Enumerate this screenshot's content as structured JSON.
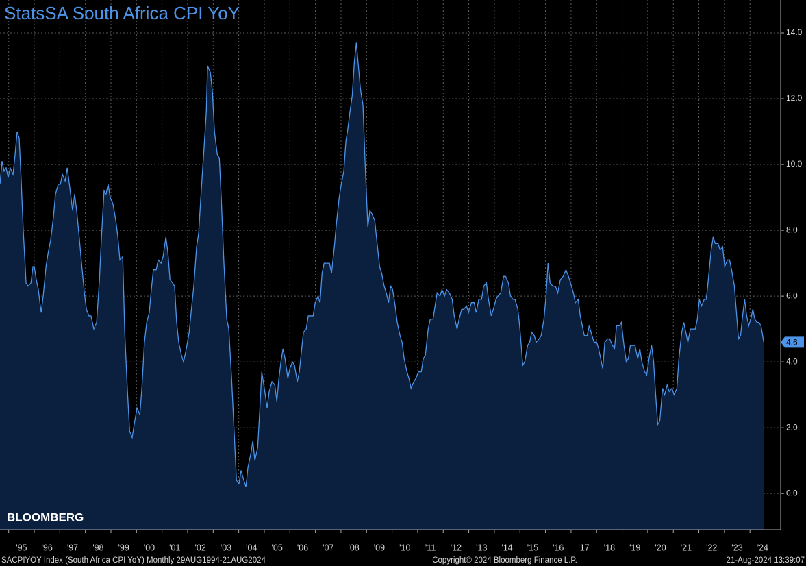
{
  "chart_data": {
    "type": "area",
    "title": "StatsSA South Africa CPI YoY",
    "watermark": "BLOOMBERG",
    "footer_left": "SACPIYOY Index (South Africa CPI YoY)  Monthly 29AUG1994-21AUG2024",
    "footer_center": "Copyright© 2024 Bloomberg Finance L.P.",
    "footer_right": "21-Aug-2024 13:39:07",
    "color": "#4d94e8",
    "fill": "#0b1f3e",
    "grid": true,
    "xlim": [
      1994.66,
      2025.2
    ],
    "ylim": [
      -1.1,
      15.0
    ],
    "yticks": [
      {
        "value": 0,
        "label": "0.0"
      },
      {
        "value": 2,
        "label": "2.0"
      },
      {
        "value": 4,
        "label": "4.0"
      },
      {
        "value": 6,
        "label": "6.0"
      },
      {
        "value": 8,
        "label": "8.0"
      },
      {
        "value": 10,
        "label": "10.0"
      },
      {
        "value": 12,
        "label": "12.0"
      },
      {
        "value": 14,
        "label": "14.0"
      }
    ],
    "xticks": [
      {
        "value": 1995,
        "label": "'95"
      },
      {
        "value": 1996,
        "label": "'96"
      },
      {
        "value": 1997,
        "label": "'97"
      },
      {
        "value": 1998,
        "label": "'98"
      },
      {
        "value": 1999,
        "label": "'99"
      },
      {
        "value": 2000,
        "label": "'00"
      },
      {
        "value": 2001,
        "label": "'01"
      },
      {
        "value": 2002,
        "label": "'02"
      },
      {
        "value": 2003,
        "label": "'03"
      },
      {
        "value": 2004,
        "label": "'04"
      },
      {
        "value": 2005,
        "label": "'05"
      },
      {
        "value": 2006,
        "label": "'06"
      },
      {
        "value": 2007,
        "label": "'07"
      },
      {
        "value": 2008,
        "label": "'08"
      },
      {
        "value": 2009,
        "label": "'09"
      },
      {
        "value": 2010,
        "label": "'10"
      },
      {
        "value": 2011,
        "label": "'11"
      },
      {
        "value": 2012,
        "label": "'12"
      },
      {
        "value": 2013,
        "label": "'13"
      },
      {
        "value": 2014,
        "label": "'14"
      },
      {
        "value": 2015,
        "label": "'15"
      },
      {
        "value": 2016,
        "label": "'16"
      },
      {
        "value": 2017,
        "label": "'17"
      },
      {
        "value": 2018,
        "label": "'18"
      },
      {
        "value": 2019,
        "label": "'19"
      },
      {
        "value": 2020,
        "label": "'20"
      },
      {
        "value": 2021,
        "label": "'21"
      },
      {
        "value": 2022,
        "label": "'22"
      },
      {
        "value": 2023,
        "label": "'23"
      },
      {
        "value": 2024,
        "label": "'24"
      }
    ],
    "x": [
      1994.66,
      1994.74,
      1994.82,
      1994.9,
      1994.98,
      1995.06,
      1995.17,
      1995.25,
      1995.33,
      1995.41,
      1995.49,
      1995.57,
      1995.68,
      1995.76,
      1995.87,
      1995.95,
      1996.0,
      1996.08,
      1996.16,
      1996.27,
      1996.35,
      1996.46,
      1996.54,
      1996.64,
      1996.75,
      1996.83,
      1996.94,
      1997.02,
      1997.1,
      1997.21,
      1997.29,
      1997.39,
      1997.5,
      1997.58,
      1997.66,
      1997.77,
      1997.85,
      1997.96,
      1998.04,
      1998.14,
      1998.22,
      1998.33,
      1998.44,
      1998.55,
      1998.63,
      1998.73,
      1998.81,
      1998.89,
      1998.97,
      1999.08,
      1999.19,
      1999.27,
      1999.35,
      1999.46,
      1999.54,
      1999.64,
      1999.73,
      1999.83,
      1999.91,
      2000.02,
      2000.13,
      2000.21,
      2000.31,
      2000.4,
      2000.5,
      2000.58,
      2000.66,
      2000.77,
      2000.85,
      2000.96,
      2001.04,
      2001.15,
      2001.23,
      2001.31,
      2001.41,
      2001.49,
      2001.57,
      2001.65,
      2001.76,
      2001.84,
      2001.95,
      2002.06,
      2002.16,
      2002.24,
      2002.35,
      2002.43,
      2002.54,
      2002.65,
      2002.73,
      2002.78,
      2002.89,
      2002.97,
      2003.05,
      2003.16,
      2003.24,
      2003.32,
      2003.42,
      2003.53,
      2003.61,
      2003.72,
      2003.83,
      2003.91,
      2004.01,
      2004.09,
      2004.2,
      2004.28,
      2004.36,
      2004.47,
      2004.55,
      2004.63,
      2004.74,
      2004.82,
      2004.9,
      2005.0,
      2005.11,
      2005.19,
      2005.3,
      2005.41,
      2005.49,
      2005.57,
      2005.65,
      2005.73,
      2005.81,
      2005.92,
      2006.0,
      2006.1,
      2006.18,
      2006.29,
      2006.37,
      2006.45,
      2006.53,
      2006.64,
      2006.72,
      2006.83,
      2006.91,
      2006.99,
      2007.1,
      2007.18,
      2007.26,
      2007.34,
      2007.44,
      2007.55,
      2007.63,
      2007.74,
      2007.82,
      2007.93,
      2008.01,
      2008.11,
      2008.19,
      2008.27,
      2008.35,
      2008.44,
      2008.52,
      2008.6,
      2008.68,
      2008.76,
      2008.86,
      2008.94,
      2009.05,
      2009.13,
      2009.21,
      2009.32,
      2009.4,
      2009.51,
      2009.59,
      2009.69,
      2009.77,
      2009.86,
      2009.94,
      2010.02,
      2010.12,
      2010.2,
      2010.31,
      2010.39,
      2010.47,
      2010.58,
      2010.66,
      2010.74,
      2010.85,
      2010.93,
      2011.03,
      2011.14,
      2011.22,
      2011.3,
      2011.41,
      2011.49,
      2011.6,
      2011.68,
      2011.76,
      2011.87,
      2011.95,
      2012.05,
      2012.13,
      2012.24,
      2012.35,
      2012.43,
      2012.54,
      2012.62,
      2012.72,
      2012.8,
      2012.91,
      2012.99,
      2013.1,
      2013.21,
      2013.29,
      2013.39,
      2013.5,
      2013.58,
      2013.69,
      2013.77,
      2013.88,
      2013.96,
      2014.06,
      2014.14,
      2014.25,
      2014.36,
      2014.44,
      2014.55,
      2014.63,
      2014.73,
      2014.81,
      2014.92,
      2015.0,
      2015.11,
      2015.19,
      2015.3,
      2015.38,
      2015.46,
      2015.56,
      2015.64,
      2015.75,
      2015.83,
      2015.94,
      2016.02,
      2016.1,
      2016.18,
      2016.29,
      2016.39,
      2016.48,
      2016.58,
      2016.69,
      2016.8,
      2016.9,
      2016.98,
      2017.09,
      2017.17,
      2017.28,
      2017.36,
      2017.44,
      2017.52,
      2017.63,
      2017.71,
      2017.82,
      2017.9,
      2018.0,
      2018.08,
      2018.16,
      2018.24,
      2018.32,
      2018.43,
      2018.51,
      2018.62,
      2018.7,
      2018.78,
      2018.89,
      2018.97,
      2019.07,
      2019.16,
      2019.24,
      2019.32,
      2019.42,
      2019.5,
      2019.61,
      2019.69,
      2019.77,
      2019.88,
      2019.96,
      2020.07,
      2020.15,
      2020.23,
      2020.31,
      2020.39,
      2020.47,
      2020.58,
      2020.66,
      2020.76,
      2020.84,
      2020.95,
      2021.03,
      2021.14,
      2021.22,
      2021.33,
      2021.41,
      2021.49,
      2021.57,
      2021.67,
      2021.75,
      2021.86,
      2021.94,
      2022.02,
      2022.1,
      2022.21,
      2022.29,
      2022.37,
      2022.48,
      2022.56,
      2022.64,
      2022.75,
      2022.83,
      2022.93,
      2023.01,
      2023.12,
      2023.2,
      2023.28,
      2023.39,
      2023.47,
      2023.55,
      2023.63,
      2023.71,
      2023.79,
      2023.87,
      2023.95,
      2024.03,
      2024.11,
      2024.19,
      2024.27,
      2024.35,
      2024.43,
      2024.54
    ],
    "values": [
      9.4,
      10.1,
      9.8,
      9.9,
      9.6,
      9.9,
      9.7,
      10.3,
      11.0,
      10.8,
      9.5,
      8.0,
      6.4,
      6.3,
      6.4,
      6.9,
      6.9,
      6.5,
      6.2,
      5.5,
      6.0,
      6.9,
      7.3,
      7.7,
      8.4,
      9.1,
      9.4,
      9.4,
      9.7,
      9.5,
      9.9,
      9.3,
      8.6,
      9.1,
      8.6,
      7.7,
      7.0,
      6.1,
      5.6,
      5.4,
      5.4,
      5.0,
      5.2,
      6.5,
      7.8,
      9.2,
      9.1,
      9.4,
      9.0,
      8.8,
      8.3,
      7.8,
      7.1,
      7.2,
      4.9,
      3.2,
      1.9,
      1.7,
      2.1,
      2.6,
      2.4,
      3.2,
      4.6,
      5.2,
      5.5,
      6.2,
      6.8,
      6.8,
      7.1,
      7.0,
      7.2,
      7.8,
      7.3,
      6.5,
      6.4,
      6.3,
      5.2,
      4.6,
      4.2,
      4.0,
      4.4,
      4.9,
      5.7,
      6.3,
      7.5,
      7.9,
      9.3,
      10.6,
      11.6,
      13.0,
      12.8,
      12.2,
      11.0,
      10.3,
      10.2,
      8.9,
      7.0,
      5.3,
      5.0,
      3.5,
      1.7,
      0.4,
      0.3,
      0.7,
      0.4,
      0.2,
      0.8,
      1.2,
      1.6,
      1.0,
      1.4,
      2.5,
      3.7,
      3.2,
      2.6,
      3.1,
      3.4,
      3.3,
      2.8,
      3.5,
      4.0,
      4.4,
      4.1,
      3.5,
      3.8,
      4.0,
      3.9,
      3.4,
      3.7,
      4.3,
      4.9,
      5.0,
      5.4,
      5.4,
      5.4,
      5.8,
      6.0,
      5.8,
      6.7,
      7.0,
      7.0,
      7.0,
      6.7,
      7.5,
      8.2,
      9.0,
      9.4,
      9.8,
      10.7,
      11.1,
      11.6,
      12.1,
      13.1,
      13.7,
      13.0,
      12.3,
      11.8,
      10.1,
      8.1,
      8.6,
      8.5,
      8.3,
      7.7,
      6.9,
      6.7,
      6.3,
      6.1,
      5.8,
      6.3,
      6.2,
      5.7,
      5.2,
      4.8,
      4.6,
      4.1,
      3.7,
      3.5,
      3.2,
      3.4,
      3.5,
      3.7,
      3.7,
      4.1,
      4.2,
      5.0,
      5.3,
      5.3,
      5.7,
      6.1,
      6.0,
      6.2,
      6.0,
      6.2,
      6.1,
      5.9,
      5.4,
      5.0,
      5.3,
      5.6,
      5.6,
      5.7,
      5.5,
      5.8,
      5.8,
      5.5,
      5.9,
      5.9,
      6.3,
      6.4,
      5.9,
      5.4,
      5.6,
      5.9,
      6.0,
      6.1,
      6.6,
      6.6,
      6.4,
      6.0,
      5.9,
      5.9,
      5.6,
      5.0,
      3.9,
      4.0,
      4.5,
      4.6,
      4.9,
      4.8,
      4.6,
      4.7,
      4.8,
      5.3,
      6.0,
      7.0,
      6.4,
      6.3,
      6.3,
      6.1,
      6.5,
      6.6,
      6.8,
      6.6,
      6.4,
      6.1,
      5.8,
      5.9,
      5.4,
      5.1,
      4.8,
      4.8,
      5.1,
      4.8,
      4.6,
      4.6,
      4.4,
      4.1,
      3.8,
      4.6,
      4.7,
      4.7,
      4.5,
      4.4,
      5.1,
      5.1,
      5.2,
      4.5,
      4.0,
      4.1,
      4.5,
      4.5,
      4.5,
      4.1,
      4.4,
      4.0,
      3.7,
      3.6,
      4.2,
      4.5,
      4.0,
      3.0,
      2.1,
      2.2,
      3.2,
      3.0,
      3.3,
      3.1,
      3.2,
      3.0,
      3.2,
      4.1,
      4.9,
      5.2,
      4.9,
      4.6,
      5.0,
      5.0,
      5.0,
      5.3,
      5.9,
      5.7,
      5.9,
      5.9,
      6.5,
      7.4,
      7.8,
      7.6,
      7.6,
      7.4,
      7.5,
      6.9,
      7.1,
      7.1,
      6.8,
      6.3,
      5.5,
      4.7,
      4.8,
      5.4,
      5.9,
      5.4,
      5.1,
      5.3,
      5.6,
      5.3,
      5.2,
      5.2,
      5.1,
      4.6
    ]
  }
}
